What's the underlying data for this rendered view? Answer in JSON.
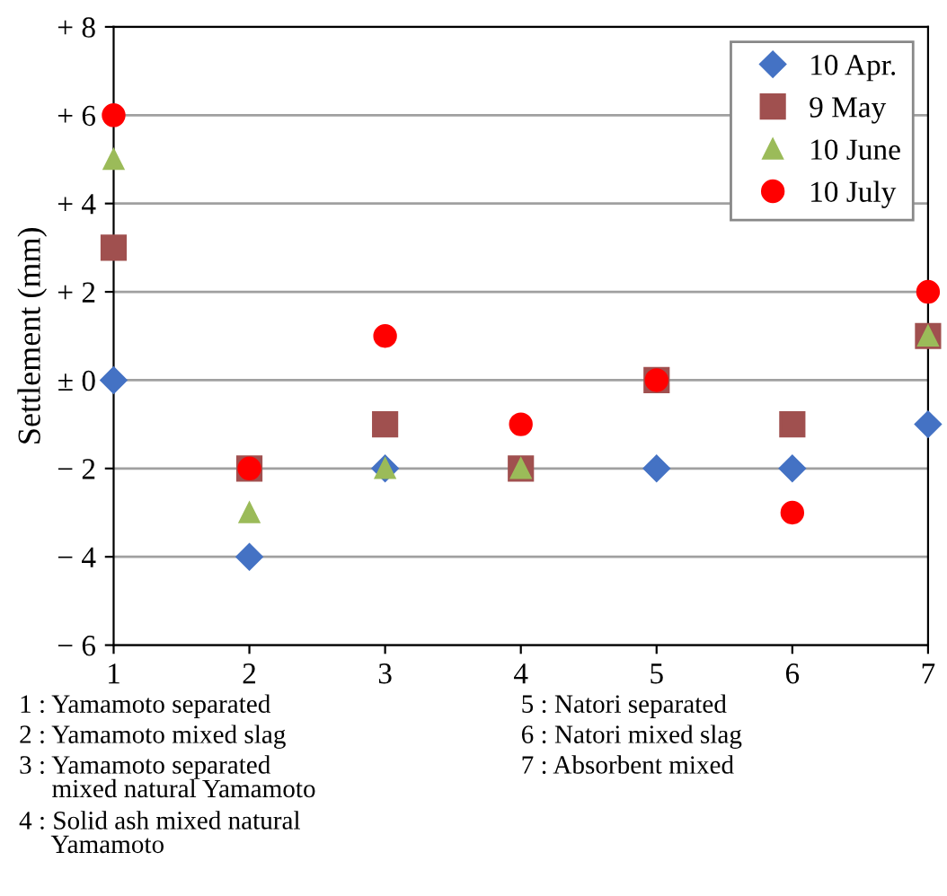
{
  "chart_data": {
    "type": "scatter",
    "ylabel": "Settlement (mm)",
    "x": [
      1,
      2,
      3,
      4,
      5,
      6,
      7
    ],
    "xlim": [
      1,
      7
    ],
    "xticks": [
      1,
      2,
      3,
      4,
      5,
      6,
      7
    ],
    "ylim": [
      -6,
      8
    ],
    "yticks": [
      {
        "value": -6,
        "label": "− 6"
      },
      {
        "value": -4,
        "label": "− 4"
      },
      {
        "value": -2,
        "label": "− 2"
      },
      {
        "value": 0,
        "label": "± 0"
      },
      {
        "value": 2,
        "label": "+ 2"
      },
      {
        "value": 4,
        "label": "+ 4"
      },
      {
        "value": 6,
        "label": "+ 6"
      },
      {
        "value": 8,
        "label": "+ 8"
      }
    ],
    "grid": "y",
    "legend": "top right",
    "series": [
      {
        "name": "10 Apr.",
        "color": "#4472c4",
        "marker": "diamond",
        "values": [
          0,
          -4,
          -2,
          null,
          -2,
          -2,
          -1
        ]
      },
      {
        "name": "9 May",
        "color": "#a0504f",
        "marker": "square",
        "values": [
          3,
          -2,
          -1,
          -2,
          0,
          -1,
          1
        ]
      },
      {
        "name": "10 June",
        "color": "#9bbb59",
        "marker": "triangle",
        "values": [
          5,
          -3,
          -2,
          -2,
          null,
          null,
          1
        ]
      },
      {
        "name": "10 July",
        "color": "#ff0000",
        "marker": "circle",
        "values": [
          6,
          -2,
          1,
          -1,
          0,
          -3,
          2
        ]
      }
    ],
    "annotations": [
      "1 : Yamamoto separated",
      "2 : Yamamoto mixed slag",
      "3 : Yamamoto separated\n     mixed natural Yamamoto",
      "4 : Solid ash mixed natural\n     Yamamoto",
      "5 : Natori separated",
      "6 : Natori mixed slag",
      "7 : Absorbent mixed"
    ]
  }
}
